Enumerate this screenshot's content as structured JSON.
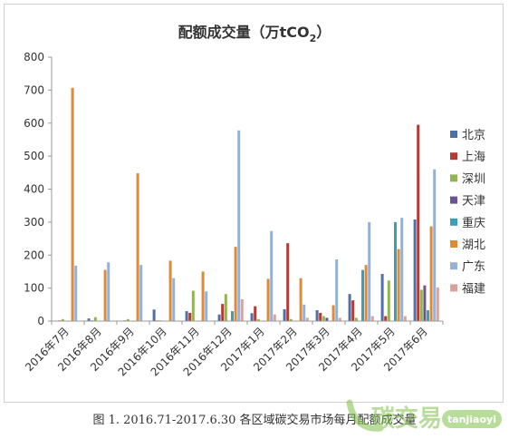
{
  "chart_data": {
    "type": "bar",
    "title": "配额成交量（万tCO",
    "title_sub": "2",
    "title_close": "）",
    "xlabel": "",
    "ylabel": "",
    "ylim": [
      0,
      800
    ],
    "yticks": [
      0,
      100,
      200,
      300,
      400,
      500,
      600,
      700,
      800
    ],
    "grid": false,
    "legend_position": "right",
    "categories": [
      "2016年7月",
      "2016年8月",
      "2016年9月",
      "2016年10月",
      "2016年11月",
      "2016年12月",
      "2017年1月",
      "2017年2月",
      "2017年3月",
      "2017年4月",
      "2017年5月",
      "2017年6月"
    ],
    "series": [
      {
        "name": "北京",
        "color": "#4f6fa8",
        "values": [
          1,
          8,
          1,
          35,
          30,
          20,
          24,
          36,
          33,
          82,
          143,
          308
        ]
      },
      {
        "name": "上海",
        "color": "#b23b36",
        "values": [
          2,
          2,
          2,
          2,
          25,
          52,
          45,
          236,
          25,
          63,
          15,
          595
        ]
      },
      {
        "name": "深圳",
        "color": "#93b357",
        "values": [
          6,
          12,
          6,
          2,
          92,
          82,
          6,
          6,
          15,
          10,
          123,
          95
        ]
      },
      {
        "name": "天津",
        "color": "#6a5594",
        "values": [
          1,
          1,
          1,
          1,
          1,
          1,
          1,
          1,
          10,
          1,
          1,
          108
        ]
      },
      {
        "name": "重庆",
        "color": "#3aa0b8",
        "values": [
          1,
          1,
          1,
          1,
          1,
          30,
          1,
          1,
          1,
          155,
          300,
          33
        ]
      },
      {
        "name": "湖北",
        "color": "#e08a35",
        "values": [
          707,
          155,
          448,
          183,
          150,
          225,
          128,
          130,
          48,
          170,
          218,
          287
        ]
      },
      {
        "name": "广东",
        "color": "#97b1d6",
        "values": [
          168,
          178,
          170,
          130,
          90,
          578,
          273,
          50,
          187,
          300,
          313,
          460
        ]
      },
      {
        "name": "福建",
        "color": "#d9a29e",
        "values": [
          1,
          1,
          1,
          1,
          1,
          66,
          20,
          10,
          10,
          15,
          15,
          102
        ]
      }
    ]
  },
  "caption": "图 1.    2016.71-2017.6.30 各区域碳交易市场每月配额成交量",
  "watermark": {
    "logo_text": "碳交易",
    "site": "tanjiaoyi",
    "brand_color": "#7fc24a"
  }
}
